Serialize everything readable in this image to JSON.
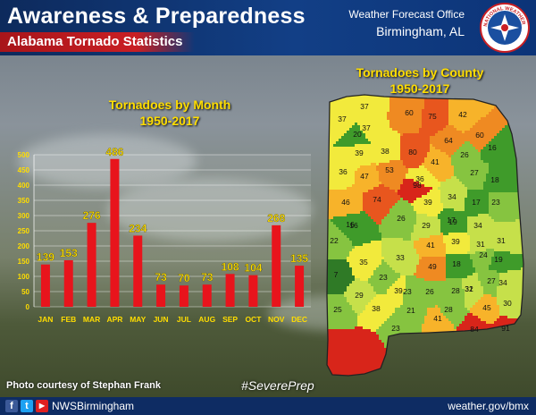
{
  "header": {
    "title": "Awareness & Preparedness",
    "subtitle": "Alabama Tornado Statistics",
    "office_line1": "Weather Forecast Office",
    "office_line2": "Birmingham, AL",
    "logo_text": "NATIONAL WEATHER SERVICE"
  },
  "chart_data": [
    {
      "type": "bar",
      "title": "Tornadoes by Month 1950-2017",
      "title_line1": "Tornadoes by Month",
      "title_line2": "1950-2017",
      "categories": [
        "JAN",
        "FEB",
        "MAR",
        "APR",
        "MAY",
        "JUN",
        "JUL",
        "AUG",
        "SEP",
        "OCT",
        "NOV",
        "DEC"
      ],
      "values": [
        139,
        153,
        276,
        486,
        234,
        73,
        70,
        73,
        108,
        104,
        268,
        135
      ],
      "yticks": [
        0,
        50,
        100,
        150,
        200,
        250,
        300,
        350,
        400,
        450,
        500
      ],
      "ylim": [
        0,
        500
      ],
      "xlabel": "",
      "ylabel": "",
      "grid": true,
      "bar_color": "#e8141c"
    },
    {
      "type": "map",
      "title": "Tornadoes by County 1950-2017",
      "title_line1": "Tornadoes by County",
      "title_line2": "1950-2017",
      "county_counts": [
        37,
        60,
        75,
        42,
        37,
        37,
        20,
        64,
        60,
        39,
        38,
        80,
        41,
        26,
        16,
        36,
        47,
        53,
        36,
        27,
        18,
        46,
        74,
        98,
        39,
        34,
        17,
        23,
        16,
        26,
        29,
        19,
        22,
        16,
        17,
        34,
        31,
        35,
        33,
        41,
        39,
        31,
        19,
        7,
        23,
        49,
        18,
        24,
        23,
        26,
        28,
        31,
        34,
        29,
        39,
        32,
        27,
        25,
        38,
        21,
        28,
        45,
        30,
        23,
        41,
        84,
        91
      ]
    }
  ],
  "footer": {
    "credit": "Photo courtesy of Stephan Frank",
    "hashtag": "#SeverePrep",
    "social_handle": "NWSBirmingham",
    "website": "weather.gov/bmx"
  },
  "colors": {
    "header_bg": "#123f86",
    "subtitle_bg": "#c91f24",
    "title_yellow": "#ffdd00",
    "bar": "#e8141c"
  }
}
